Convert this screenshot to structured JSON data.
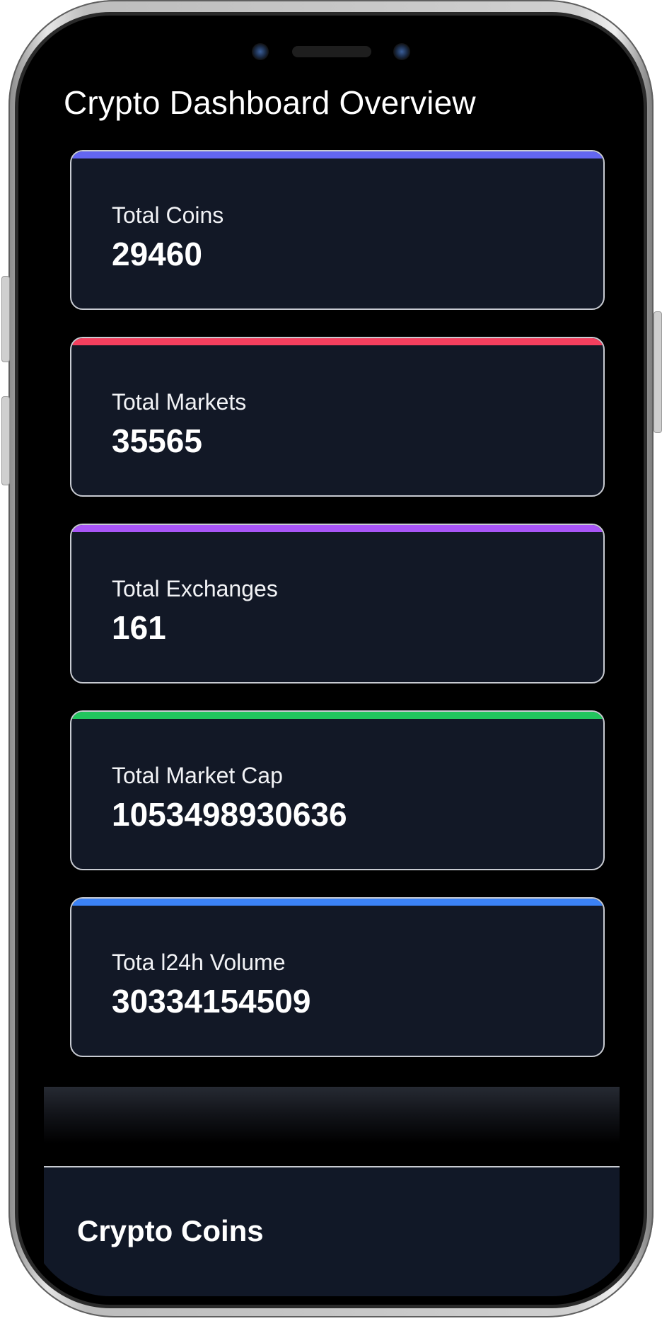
{
  "header": {
    "title": "Crypto Dashboard Overview"
  },
  "stats": [
    {
      "label": "Total Coins",
      "value": "29460",
      "accent": "#6366f1"
    },
    {
      "label": "Total Markets",
      "value": "35565",
      "accent": "#f43f5e"
    },
    {
      "label": "Total Exchanges",
      "value": "161",
      "accent": "#a855f7"
    },
    {
      "label": "Total Market Cap",
      "value": "1053498930636",
      "accent": "#22c55e"
    },
    {
      "label": "Tota l24h Volume",
      "value": "30334154509",
      "accent": "#3b82f6"
    }
  ],
  "section": {
    "title": "Crypto Coins"
  },
  "colors": {
    "card_background": "#121826",
    "card_border": "#c8cbd2",
    "screen_background": "#000000"
  }
}
